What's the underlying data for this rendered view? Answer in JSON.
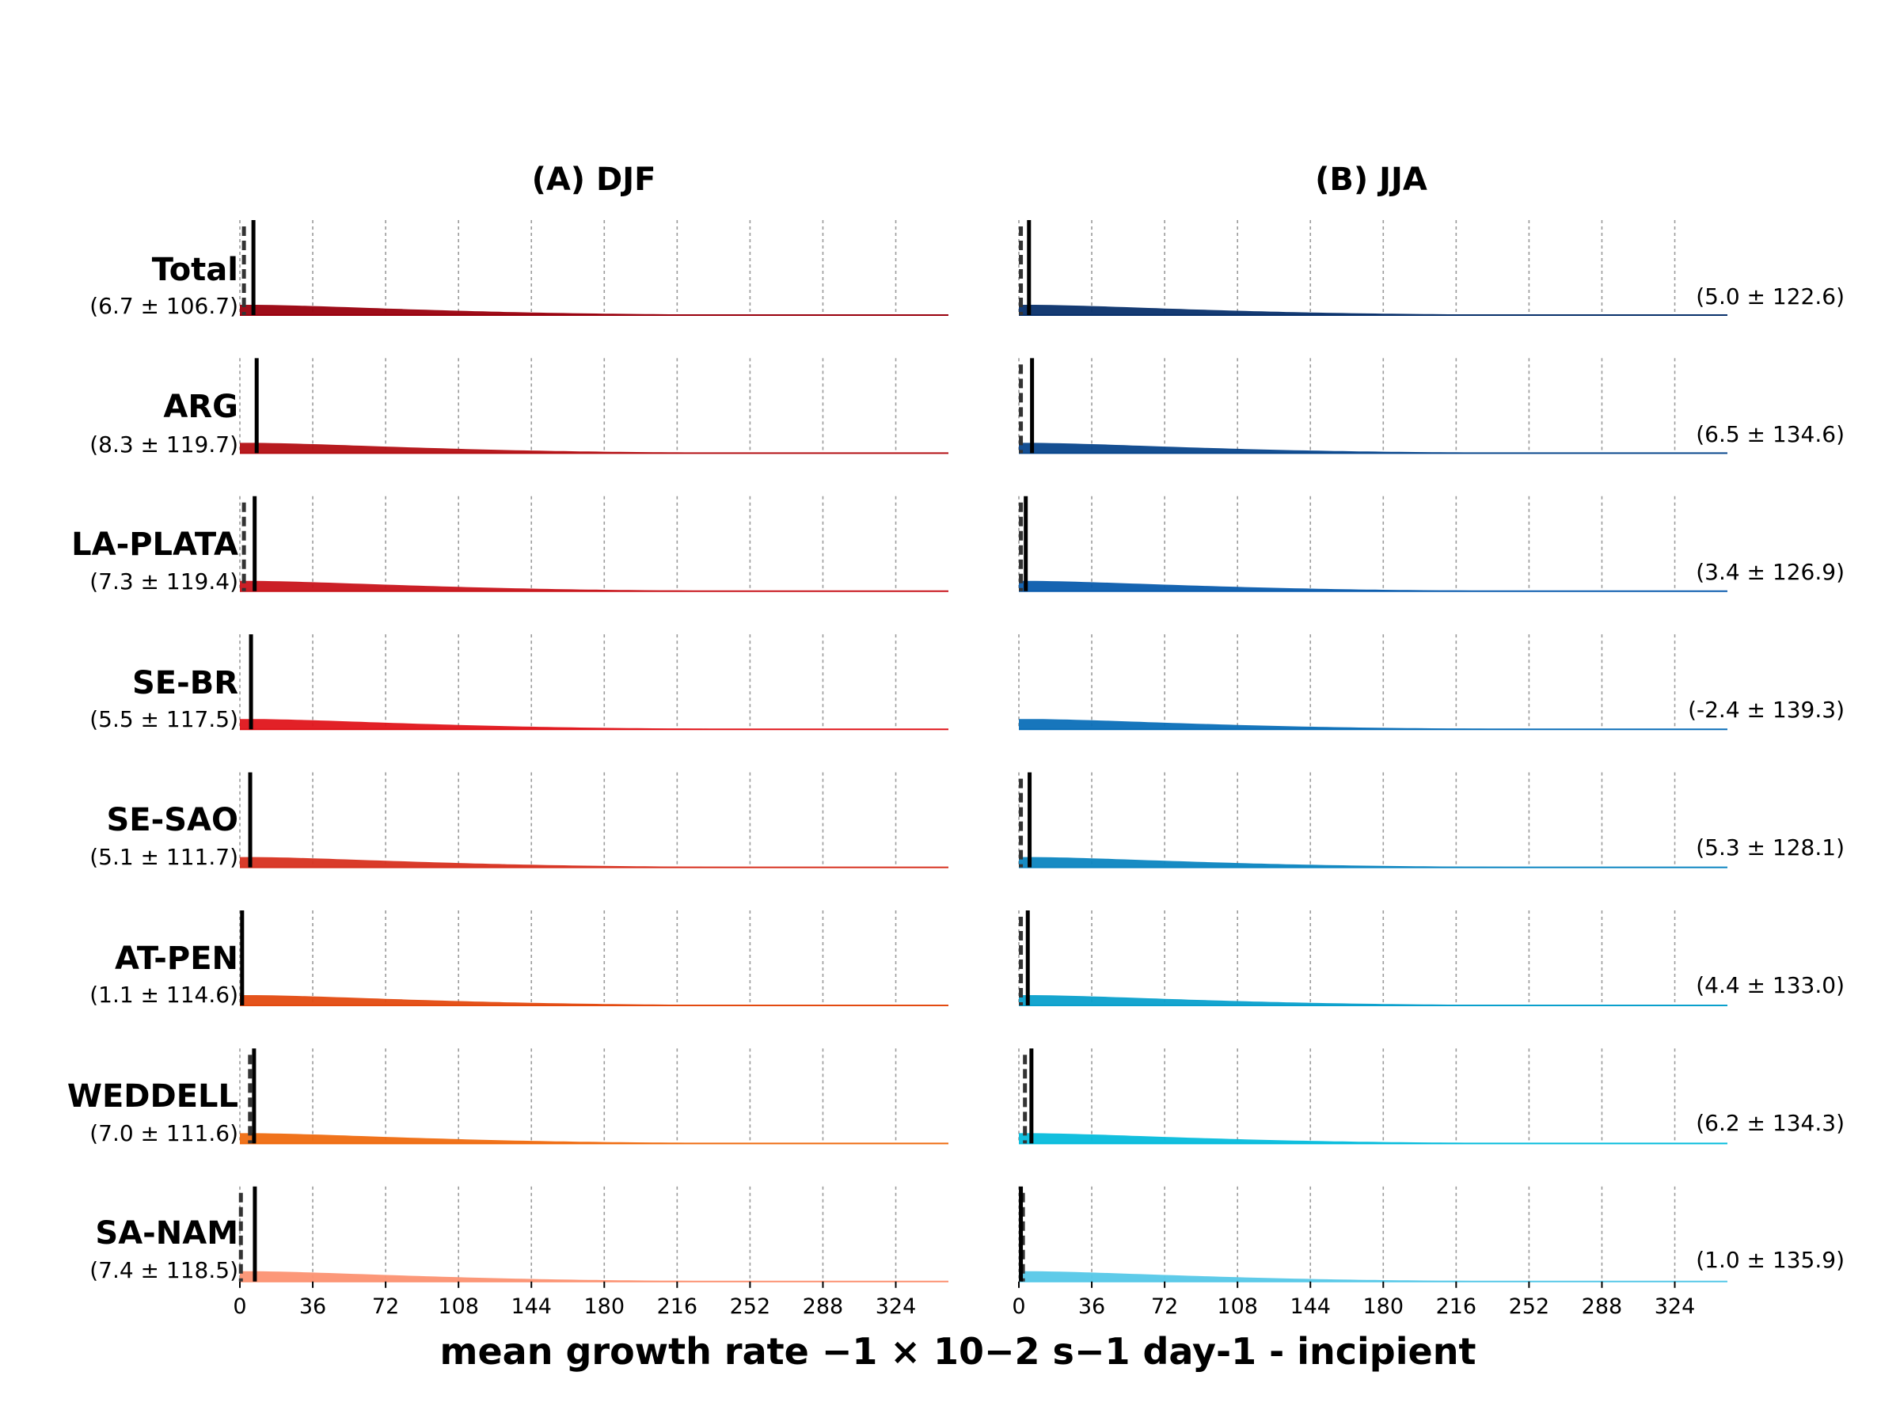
{
  "chart_data": [
    {
      "type": "area",
      "panel_title": "(A) DJF",
      "xlabel": "mean growth rate  −1 × 10−2 s−1 day-1 - incipient",
      "xticks": [
        0,
        36,
        72,
        108,
        144,
        180,
        216,
        252,
        288,
        324
      ],
      "xlim": [
        0,
        350
      ],
      "grid": "vertical dashed",
      "series": [
        {
          "name": "Total",
          "stat": "(6.7 ± 106.7)",
          "mean": 6.7,
          "median": 2,
          "color": "#99000d"
        },
        {
          "name": "ARG",
          "stat": "(8.3 ± 119.7)",
          "mean": 8.3,
          "median": null,
          "color": "#b30f13"
        },
        {
          "name": "LA-PLATA",
          "stat": "(7.3 ± 119.4)",
          "mean": 7.3,
          "median": 2,
          "color": "#c8141b"
        },
        {
          "name": "SE-BR",
          "stat": "(5.5 ± 117.5)",
          "mean": 5.5,
          "median": null,
          "color": "#e0151b"
        },
        {
          "name": "SE-SAO",
          "stat": "(5.1 ± 111.7)",
          "mean": 5.1,
          "median": null,
          "color": "#d7301f"
        },
        {
          "name": "AT-PEN",
          "stat": "(1.1 ± 114.6)",
          "mean": 1.1,
          "median": null,
          "color": "#e34a10"
        },
        {
          "name": "WEDDELL",
          "stat": "(7.0 ± 111.6)",
          "mean": 7.0,
          "median": 5,
          "color": "#ef6c10"
        },
        {
          "name": "SA-NAM",
          "stat": "(7.4 ± 118.5)",
          "mean": 7.4,
          "median": 0.5,
          "color": "#fc9272"
        }
      ]
    },
    {
      "type": "area",
      "panel_title": "(B) JJA",
      "xlabel": "mean growth rate  −1 × 10−2 s−1 day-1 - incipient",
      "xticks": [
        0,
        36,
        72,
        108,
        144,
        180,
        216,
        252,
        288,
        324
      ],
      "xlim": [
        0,
        350
      ],
      "grid": "vertical dashed",
      "series": [
        {
          "name": "Total",
          "stat": "(5.0 ± 122.6)",
          "mean": 5.0,
          "median": 1,
          "color": "#08306b"
        },
        {
          "name": "ARG",
          "stat": "(6.5 ± 134.6)",
          "mean": 6.5,
          "median": 1,
          "color": "#08468c"
        },
        {
          "name": "LA-PLATA",
          "stat": "(3.4 ± 126.9)",
          "mean": 3.4,
          "median": 1,
          "color": "#0a5cad"
        },
        {
          "name": "SE-BR",
          "stat": "(-2.4 ± 139.3)",
          "mean": -2.4,
          "median": null,
          "color": "#0b6fb8"
        },
        {
          "name": "SE-SAO",
          "stat": "(5.3 ± 128.1)",
          "mean": 5.3,
          "median": 1,
          "color": "#0b85c0"
        },
        {
          "name": "AT-PEN",
          "stat": "(4.4 ± 133.0)",
          "mean": 4.4,
          "median": 1,
          "color": "#0aa0cc"
        },
        {
          "name": "WEDDELL",
          "stat": "(6.2 ± 134.3)",
          "mean": 6.2,
          "median": 3,
          "color": "#06bcdc"
        },
        {
          "name": "SA-NAM",
          "stat": "(1.0 ± 135.9)",
          "mean": 1.0,
          "median": 2,
          "color": "#56c8e8"
        }
      ]
    }
  ]
}
